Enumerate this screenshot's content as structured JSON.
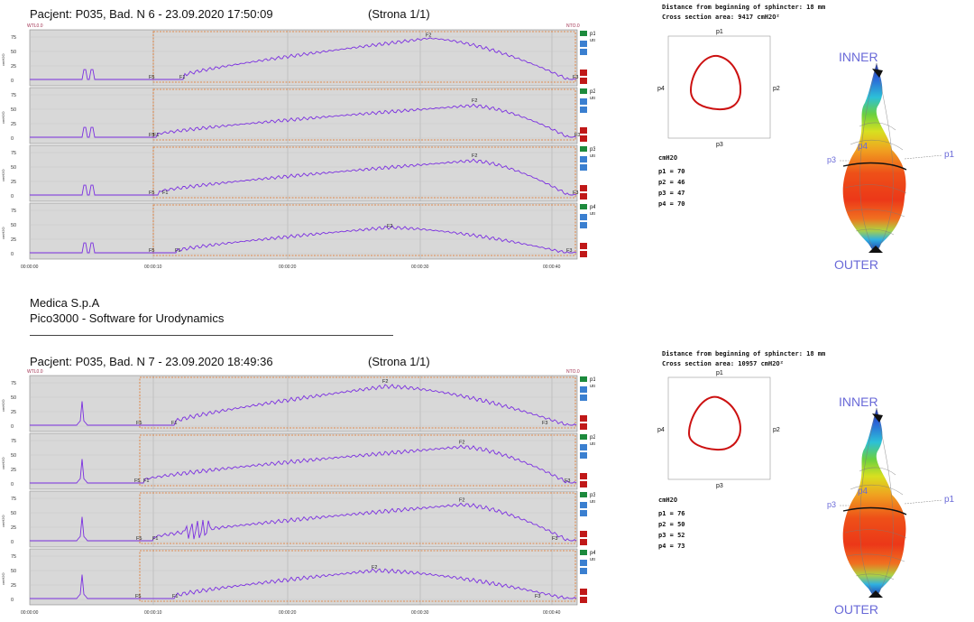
{
  "company": {
    "name": "Medica S.p.A",
    "product": "Pico3000 - Software for Urodynamics"
  },
  "reports": [
    {
      "title": "Pacjent: P035, Bad. N 6 - 23.09.2020 17:50:09",
      "page": "(Strona 1/1)",
      "corner_left": "WTL0.0",
      "corner_right": "NTO.0",
      "time_ticks": [
        "00:00:00",
        "00:00:10",
        "00:00:20",
        "00:00:30",
        "00:00:40"
      ],
      "channels": [
        {
          "name": "p1",
          "unit": "ura",
          "ylabel": "cmH2O",
          "markers": {
            "f1": "F1",
            "f2": "F2",
            "f3": "F3",
            "f5": "F5"
          }
        },
        {
          "name": "p2",
          "unit": "ura",
          "ylabel": "cmH2O",
          "markers": {
            "f1": "F1",
            "f2": "F2",
            "f3": "F3",
            "f5": "F5"
          }
        },
        {
          "name": "p3",
          "unit": "ura",
          "ylabel": "cmH2O",
          "markers": {
            "f1": "F1",
            "f2": "F2",
            "f3": "F3",
            "f5": "F5"
          }
        },
        {
          "name": "p4",
          "unit": "ura",
          "ylabel": "cmH2O",
          "markers": {
            "f1": "F1",
            "f2": "F2",
            "f3": "F3",
            "f5": "F5"
          }
        }
      ],
      "y_ticks": [
        "75",
        "50",
        "25",
        "0"
      ],
      "info": {
        "distance": "Distance from beginning of sphincter: 18 mm",
        "area": "Cross section area: 9417 cmH2O²"
      },
      "cross_section": {
        "top": "p1",
        "right": "p2",
        "bottom": "p3",
        "left": "p4"
      },
      "pressures": {
        "unit": "cmH2O",
        "lines": [
          "p1 = 70",
          "p2 = 46",
          "p3 = 47",
          "p4 = 70"
        ]
      },
      "vector": {
        "inner": "INNER",
        "outer": "OUTER",
        "p1": "p1",
        "p3": "p3",
        "p4": "p4"
      }
    },
    {
      "title": "Pacjent: P035, Bad. N 7 - 23.09.2020 18:49:36",
      "page": "(Strona 1/1)",
      "corner_left": "WTL0.0",
      "corner_right": "NTO.0",
      "time_ticks": [
        "00:00:00",
        "00:00:10",
        "00:00:20",
        "00:00:30",
        "00:00:40"
      ],
      "channels": [
        {
          "name": "p1",
          "unit": "ura",
          "ylabel": "cmH2O",
          "markers": {
            "f1": "F1",
            "f2": "F2",
            "f3": "F3",
            "f5": "F5"
          }
        },
        {
          "name": "p2",
          "unit": "ura",
          "ylabel": "cmH2O",
          "markers": {
            "f1": "F1",
            "f2": "F2",
            "f3": "F3",
            "f5": "F5"
          }
        },
        {
          "name": "p3",
          "unit": "ura",
          "ylabel": "cmH2O",
          "markers": {
            "f1": "F1",
            "f2": "F2",
            "f3": "F3",
            "f5": "F5"
          }
        },
        {
          "name": "p4",
          "unit": "ura",
          "ylabel": "cmH2O",
          "markers": {
            "f1": "F1",
            "f2": "F2",
            "f3": "F3",
            "f5": "F5"
          }
        }
      ],
      "y_ticks": [
        "75",
        "50",
        "25",
        "0"
      ],
      "info": {
        "distance": "Distance from beginning of sphincter: 18 mm",
        "area": "Cross section area: 10957 cmH2O²"
      },
      "cross_section": {
        "top": "p1",
        "right": "p2",
        "bottom": "p3",
        "left": "p4"
      },
      "pressures": {
        "unit": "cmH2O",
        "lines": [
          "p1 = 76",
          "p2 = 50",
          "p3 = 52",
          "p4 = 73"
        ]
      },
      "vector": {
        "inner": "INNER",
        "outer": "OUTER",
        "p1": "p1",
        "p3": "p3",
        "p4": "p4"
      }
    }
  ],
  "colors": {
    "trace": "#7b2fe0",
    "panel_bg": "#d8d8d8",
    "window_line": "#e07020",
    "cross_section": "#cc1111",
    "label_blue": "#6a6ad8",
    "btn_green": "#1c8a3c",
    "btn_blue": "#3a7fd0",
    "btn_red": "#c01818"
  }
}
